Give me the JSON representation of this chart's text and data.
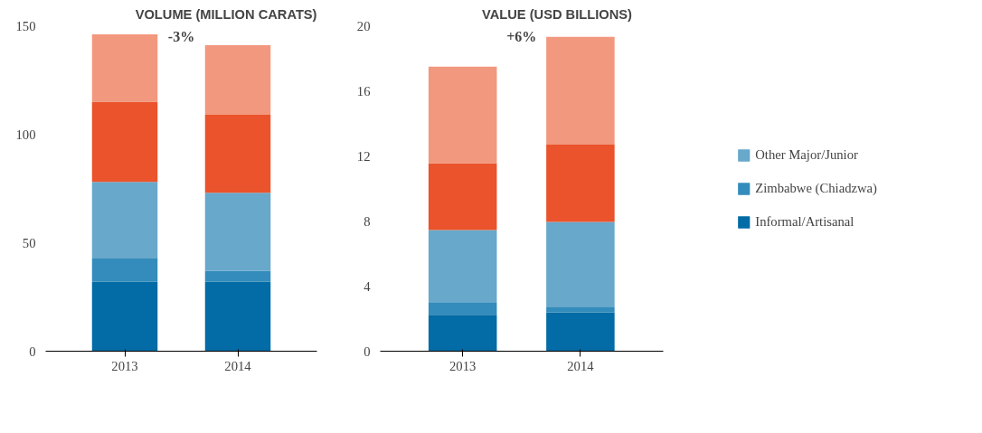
{
  "chart_data": [
    {
      "type": "bar",
      "stacked": true,
      "title": "VOLUME (MILLION CARATS)",
      "categories": [
        "2013",
        "2014"
      ],
      "ylim": [
        0,
        150
      ],
      "yticks": [
        0,
        50,
        100,
        150
      ],
      "grid": false,
      "annotations": [
        "-3%"
      ],
      "series": [
        {
          "color": "#036ba5",
          "values": [
            32,
            32
          ]
        },
        {
          "color": "#338cbb",
          "values": [
            11,
            5
          ]
        },
        {
          "color": "#67a8cb",
          "values": [
            35,
            36
          ]
        },
        {
          "color": "#ea532b",
          "values": [
            37,
            36
          ]
        },
        {
          "color": "#f2987e",
          "values": [
            31,
            32
          ]
        }
      ]
    },
    {
      "type": "bar",
      "stacked": true,
      "title": "VALUE (USD BILLIONS)",
      "categories": [
        "2013",
        "2014"
      ],
      "ylim": [
        0,
        20
      ],
      "yticks": [
        0,
        4,
        8,
        12,
        16,
        20
      ],
      "grid": false,
      "legend": "right",
      "annotations": [
        "+6%"
      ],
      "series": [
        {
          "name": "Informal/Artisanal",
          "color": "#036ba5",
          "values": [
            2.24,
            2.37
          ]
        },
        {
          "name": "Zimbabwe (Chiadzwa)",
          "color": "#338cbb",
          "values": [
            0.73,
            0.32
          ]
        },
        {
          "name": "Other Major/Junior",
          "color": "#67a8cb",
          "values": [
            4.47,
            5.26
          ]
        },
        {
          "color": "#ea532b",
          "values": [
            4.11,
            4.74
          ]
        },
        {
          "color": "#f2987e",
          "values": [
            5.94,
            6.63
          ]
        }
      ]
    }
  ]
}
